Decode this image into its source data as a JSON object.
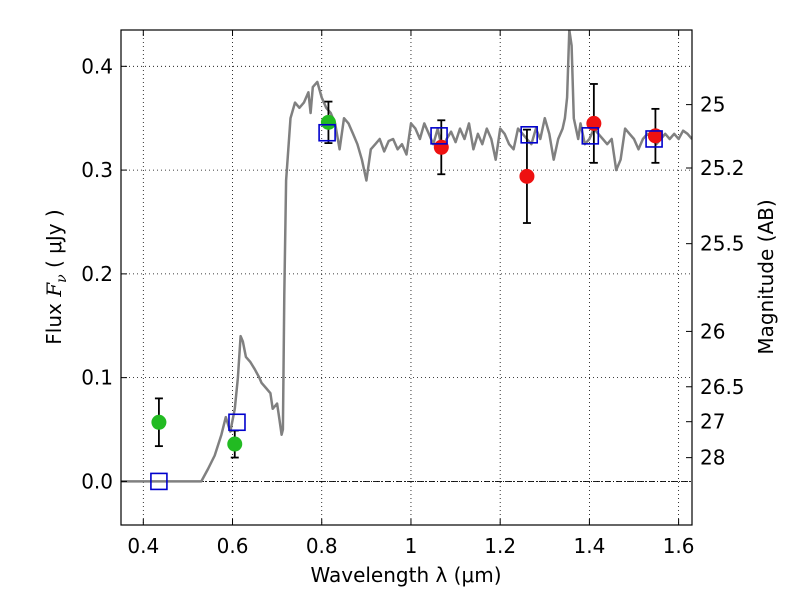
{
  "chart_data": {
    "type": "scatter",
    "xlabel": "Wavelength  λ (μm)",
    "ylabel": "Flux  F_ν  ( μJy )",
    "ylabel_parts": {
      "prefix": "Flux  ",
      "symbol": "F",
      "subscript": "ν",
      "suffix": "  ( μJy )"
    },
    "y2label": "Magnitude (AB)",
    "xlim": [
      0.35,
      1.63
    ],
    "ylim": [
      -0.042,
      0.435
    ],
    "x_ticks": [
      0.4,
      0.6,
      0.8,
      1.0,
      1.2,
      1.4,
      1.6
    ],
    "x_tick_labels": [
      "0.4",
      "0.6",
      "0.8",
      "1",
      "1.2",
      "1.4",
      "1.6"
    ],
    "y_ticks": [
      0.0,
      0.1,
      0.2,
      0.3,
      0.4
    ],
    "y_tick_labels": [
      "0.0",
      "0.1",
      "0.2",
      "0.3",
      "0.4"
    ],
    "y2_ticks": [
      25,
      25.2,
      25.5,
      26,
      26.5,
      27,
      28
    ],
    "y2_tick_labels": [
      "25",
      "25.2",
      "25.5",
      "26",
      "26.5",
      "27",
      "28"
    ],
    "grid": true,
    "colors": {
      "template": "#808080",
      "green": "#22bb22",
      "red": "#ee1111",
      "model": "#0000cc",
      "errorbar": "#000000"
    },
    "series": [
      {
        "kind": "line",
        "x": [
          0.35,
          0.53,
          0.545,
          0.56,
          0.575,
          0.585,
          0.595,
          0.605,
          0.612,
          0.618,
          0.623,
          0.63,
          0.64,
          0.65,
          0.66,
          0.665,
          0.675,
          0.685,
          0.69,
          0.7,
          0.705,
          0.71,
          0.713,
          0.716,
          0.72,
          0.73,
          0.74,
          0.75,
          0.76,
          0.77,
          0.775,
          0.78,
          0.79,
          0.8,
          0.81,
          0.82,
          0.83,
          0.84,
          0.85,
          0.86,
          0.87,
          0.88,
          0.89,
          0.9,
          0.91,
          0.92,
          0.93,
          0.94,
          0.95,
          0.96,
          0.97,
          0.98,
          0.99,
          1.0,
          1.01,
          1.02,
          1.03,
          1.04,
          1.05,
          1.06,
          1.07,
          1.08,
          1.09,
          1.1,
          1.11,
          1.12,
          1.13,
          1.14,
          1.15,
          1.16,
          1.17,
          1.18,
          1.19,
          1.2,
          1.21,
          1.22,
          1.23,
          1.24,
          1.25,
          1.26,
          1.27,
          1.28,
          1.29,
          1.3,
          1.31,
          1.32,
          1.33,
          1.34,
          1.345,
          1.35,
          1.355,
          1.36,
          1.365,
          1.37,
          1.375,
          1.38,
          1.39,
          1.4,
          1.41,
          1.42,
          1.43,
          1.44,
          1.45,
          1.46,
          1.47,
          1.48,
          1.49,
          1.5,
          1.51,
          1.52,
          1.53,
          1.54,
          1.55,
          1.56,
          1.57,
          1.58,
          1.59,
          1.6,
          1.61,
          1.62,
          1.63
        ],
        "y": [
          0.0,
          0.0,
          0.012,
          0.025,
          0.045,
          0.062,
          0.048,
          0.07,
          0.1,
          0.14,
          0.135,
          0.12,
          0.115,
          0.108,
          0.1,
          0.095,
          0.09,
          0.085,
          0.07,
          0.075,
          0.06,
          0.045,
          0.05,
          0.18,
          0.29,
          0.35,
          0.365,
          0.36,
          0.365,
          0.375,
          0.355,
          0.38,
          0.385,
          0.37,
          0.36,
          0.355,
          0.345,
          0.32,
          0.35,
          0.345,
          0.335,
          0.325,
          0.31,
          0.29,
          0.32,
          0.325,
          0.33,
          0.318,
          0.328,
          0.33,
          0.32,
          0.325,
          0.315,
          0.345,
          0.34,
          0.33,
          0.345,
          0.335,
          0.325,
          0.34,
          0.32,
          0.33,
          0.337,
          0.327,
          0.34,
          0.33,
          0.345,
          0.32,
          0.335,
          0.325,
          0.34,
          0.33,
          0.31,
          0.34,
          0.335,
          0.325,
          0.32,
          0.34,
          0.335,
          0.33,
          0.325,
          0.34,
          0.33,
          0.35,
          0.335,
          0.31,
          0.33,
          0.34,
          0.35,
          0.37,
          0.435,
          0.42,
          0.35,
          0.34,
          0.33,
          0.345,
          0.325,
          0.33,
          0.34,
          0.335,
          0.33,
          0.325,
          0.33,
          0.3,
          0.31,
          0.34,
          0.335,
          0.33,
          0.32,
          0.33,
          0.335,
          0.33,
          0.325,
          0.33,
          0.335,
          0.33,
          0.335,
          0.33,
          0.338,
          0.335,
          0.33
        ]
      },
      {
        "kind": "points",
        "color": "green",
        "x": [
          0.435,
          0.605,
          0.815
        ],
        "y": [
          0.057,
          0.036,
          0.346
        ],
        "yerr": [
          0.023,
          0.013,
          0.02
        ]
      },
      {
        "kind": "points",
        "color": "red",
        "x": [
          1.068,
          1.26,
          1.41,
          1.548
        ],
        "y": [
          0.322,
          0.294,
          0.345,
          0.333
        ],
        "yerr": [
          0.026,
          0.045,
          0.038,
          0.026
        ]
      },
      {
        "kind": "squares",
        "color": "model",
        "x": [
          0.435,
          0.61,
          0.812,
          1.063,
          1.265,
          1.402,
          1.545
        ],
        "y": [
          0.0,
          0.057,
          0.336,
          0.333,
          0.334,
          0.333,
          0.33
        ]
      }
    ]
  }
}
